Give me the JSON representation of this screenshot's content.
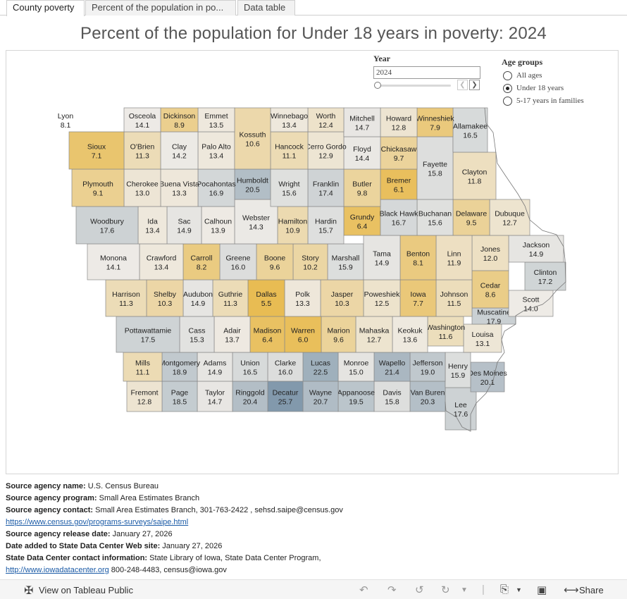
{
  "tabs": [
    {
      "label": "County poverty",
      "active": true
    },
    {
      "label": "Percent of the population in po...",
      "active": false
    },
    {
      "label": "Data table",
      "active": false
    }
  ],
  "title": "Percent of the population for Under 18 years in poverty: 2024",
  "year_filter": {
    "label": "Year",
    "value": "2024"
  },
  "age_groups": {
    "title": "Age  groups",
    "options": [
      {
        "label": "All ages",
        "selected": false
      },
      {
        "label": "Under 18 years",
        "selected": true
      },
      {
        "label": "5-17 years in families",
        "selected": false
      }
    ]
  },
  "map": {
    "color_scale": {
      "low": "#E8B94A",
      "mid": "#EEEBE6",
      "high": "#7F97AA"
    },
    "counties": [
      {
        "name": "Lyon",
        "value": "8.1"
      },
      {
        "name": "Osceola",
        "value": "14.1"
      },
      {
        "name": "Dickinson",
        "value": "8.9"
      },
      {
        "name": "Emmet",
        "value": "13.5"
      },
      {
        "name": "Kossuth",
        "value": "10.6"
      },
      {
        "name": "Winnebago",
        "value": "13.4"
      },
      {
        "name": "Worth",
        "value": "12.4"
      },
      {
        "name": "Mitchell",
        "value": "14.7"
      },
      {
        "name": "Howard",
        "value": "12.8"
      },
      {
        "name": "Winneshiek",
        "value": "7.9"
      },
      {
        "name": "Allamakee",
        "value": "16.5"
      },
      {
        "name": "Sioux",
        "value": "7.1"
      },
      {
        "name": "O'Brien",
        "value": "11.3"
      },
      {
        "name": "Clay",
        "value": "14.2"
      },
      {
        "name": "Palo Alto",
        "value": "13.4"
      },
      {
        "name": "Hancock",
        "value": "11.1"
      },
      {
        "name": "Cerro Gordo",
        "value": "12.9"
      },
      {
        "name": "Floyd",
        "value": "14.4"
      },
      {
        "name": "Chickasaw",
        "value": "9.7"
      },
      {
        "name": "Fayette",
        "value": "15.8"
      },
      {
        "name": "Clayton",
        "value": "11.8"
      },
      {
        "name": "Plymouth",
        "value": "9.1"
      },
      {
        "name": "Cherokee",
        "value": "13.0"
      },
      {
        "name": "Buena Vista",
        "value": "13.3"
      },
      {
        "name": "Pocahontas",
        "value": "16.9"
      },
      {
        "name": "Humboldt",
        "value": "20.5"
      },
      {
        "name": "Wright",
        "value": "15.6"
      },
      {
        "name": "Franklin",
        "value": "17.4"
      },
      {
        "name": "Butler",
        "value": "9.8"
      },
      {
        "name": "Bremer",
        "value": "6.1"
      },
      {
        "name": "Black Hawk",
        "value": "16.7"
      },
      {
        "name": "Buchanan",
        "value": "15.6"
      },
      {
        "name": "Delaware",
        "value": "9.5"
      },
      {
        "name": "Dubuque",
        "value": "12.7"
      },
      {
        "name": "Woodbury",
        "value": "17.6"
      },
      {
        "name": "Ida",
        "value": "13.4"
      },
      {
        "name": "Sac",
        "value": "14.9"
      },
      {
        "name": "Calhoun",
        "value": "13.9"
      },
      {
        "name": "Webster",
        "value": "14.3"
      },
      {
        "name": "Hamilton",
        "value": "10.9"
      },
      {
        "name": "Hardin",
        "value": "15.7"
      },
      {
        "name": "Grundy",
        "value": "6.4"
      },
      {
        "name": "Tama",
        "value": "14.9"
      },
      {
        "name": "Benton",
        "value": "8.1"
      },
      {
        "name": "Linn",
        "value": "11.9"
      },
      {
        "name": "Jones",
        "value": "12.0"
      },
      {
        "name": "Jackson",
        "value": "14.9"
      },
      {
        "name": "Monona",
        "value": "14.1"
      },
      {
        "name": "Crawford",
        "value": "13.4"
      },
      {
        "name": "Carroll",
        "value": "8.2"
      },
      {
        "name": "Greene",
        "value": "16.0"
      },
      {
        "name": "Boone",
        "value": "9.6"
      },
      {
        "name": "Story",
        "value": "10.2"
      },
      {
        "name": "Marshall",
        "value": "15.9"
      },
      {
        "name": "Clinton",
        "value": "17.2"
      },
      {
        "name": "Harrison",
        "value": "11.3"
      },
      {
        "name": "Shelby",
        "value": "10.3"
      },
      {
        "name": "Audubon",
        "value": "14.9"
      },
      {
        "name": "Guthrie",
        "value": "11.3"
      },
      {
        "name": "Dallas",
        "value": "5.5"
      },
      {
        "name": "Polk",
        "value": "13.3"
      },
      {
        "name": "Jasper",
        "value": "10.3"
      },
      {
        "name": "Poweshiek",
        "value": "12.5"
      },
      {
        "name": "Iowa",
        "value": "7.7"
      },
      {
        "name": "Johnson",
        "value": "11.5"
      },
      {
        "name": "Cedar",
        "value": "8.6"
      },
      {
        "name": "Scott",
        "value": "14.0"
      },
      {
        "name": "Muscatine",
        "value": "17.9"
      },
      {
        "name": "Pottawattamie",
        "value": "17.5"
      },
      {
        "name": "Cass",
        "value": "15.3"
      },
      {
        "name": "Adair",
        "value": "13.7"
      },
      {
        "name": "Madison",
        "value": "6.4"
      },
      {
        "name": "Warren",
        "value": "6.0"
      },
      {
        "name": "Marion",
        "value": "9.6"
      },
      {
        "name": "Mahaska",
        "value": "12.7"
      },
      {
        "name": "Keokuk",
        "value": "13.6"
      },
      {
        "name": "Washington",
        "value": "11.6"
      },
      {
        "name": "Louisa",
        "value": "13.1"
      },
      {
        "name": "Mills",
        "value": "11.1"
      },
      {
        "name": "Montgomery",
        "value": "18.9"
      },
      {
        "name": "Adams",
        "value": "14.9"
      },
      {
        "name": "Union",
        "value": "16.5"
      },
      {
        "name": "Clarke",
        "value": "16.0"
      },
      {
        "name": "Lucas",
        "value": "22.5"
      },
      {
        "name": "Monroe",
        "value": "15.0"
      },
      {
        "name": "Wapello",
        "value": "21.4"
      },
      {
        "name": "Jefferson",
        "value": "19.0"
      },
      {
        "name": "Henry",
        "value": "15.9"
      },
      {
        "name": "Des Moines",
        "value": "20.1"
      },
      {
        "name": "Fremont",
        "value": "12.8"
      },
      {
        "name": "Page",
        "value": "18.5"
      },
      {
        "name": "Taylor",
        "value": "14.7"
      },
      {
        "name": "Ringgold",
        "value": "20.4"
      },
      {
        "name": "Decatur",
        "value": "25.7"
      },
      {
        "name": "Wayne",
        "value": "20.7"
      },
      {
        "name": "Appanoose",
        "value": "19.5"
      },
      {
        "name": "Davis",
        "value": "15.8"
      },
      {
        "name": "Van Buren",
        "value": "20.3"
      },
      {
        "name": "Lee",
        "value": "17.6"
      }
    ]
  },
  "source": {
    "agency_name_label": "Source agency name:",
    "agency_name": "U.S. Census Bureau",
    "program_label": "Source agency program:",
    "program": "Small Area Estimates Branch",
    "contact_label": "Source agency contact:",
    "contact": "Small Area Estimates Branch, 301-763-2422 , sehsd.saipe@census.gov",
    "url": "https://www.census.gov/programs-surveys/saipe.html",
    "release_label": "Source agency release date:",
    "release": "January 27, 2026",
    "added_label": "Date added to State Data Center Web site:",
    "added": "January 27, 2026",
    "sdc_label": "State Data Center contact information:",
    "sdc": "State Library of Iowa, State Data Center Program,",
    "sdc_url": "http://www.iowadatacenter.org",
    "sdc_rest": " 800-248-4483, census@iowa.gov"
  },
  "footer": {
    "view_label": "View on Tableau Public",
    "share_label": "Share",
    "icons": [
      "tableau-icon",
      "undo-icon",
      "redo-icon",
      "revert-icon",
      "refresh-icon",
      "download-icon",
      "fullscreen-icon",
      "share-icon"
    ]
  }
}
